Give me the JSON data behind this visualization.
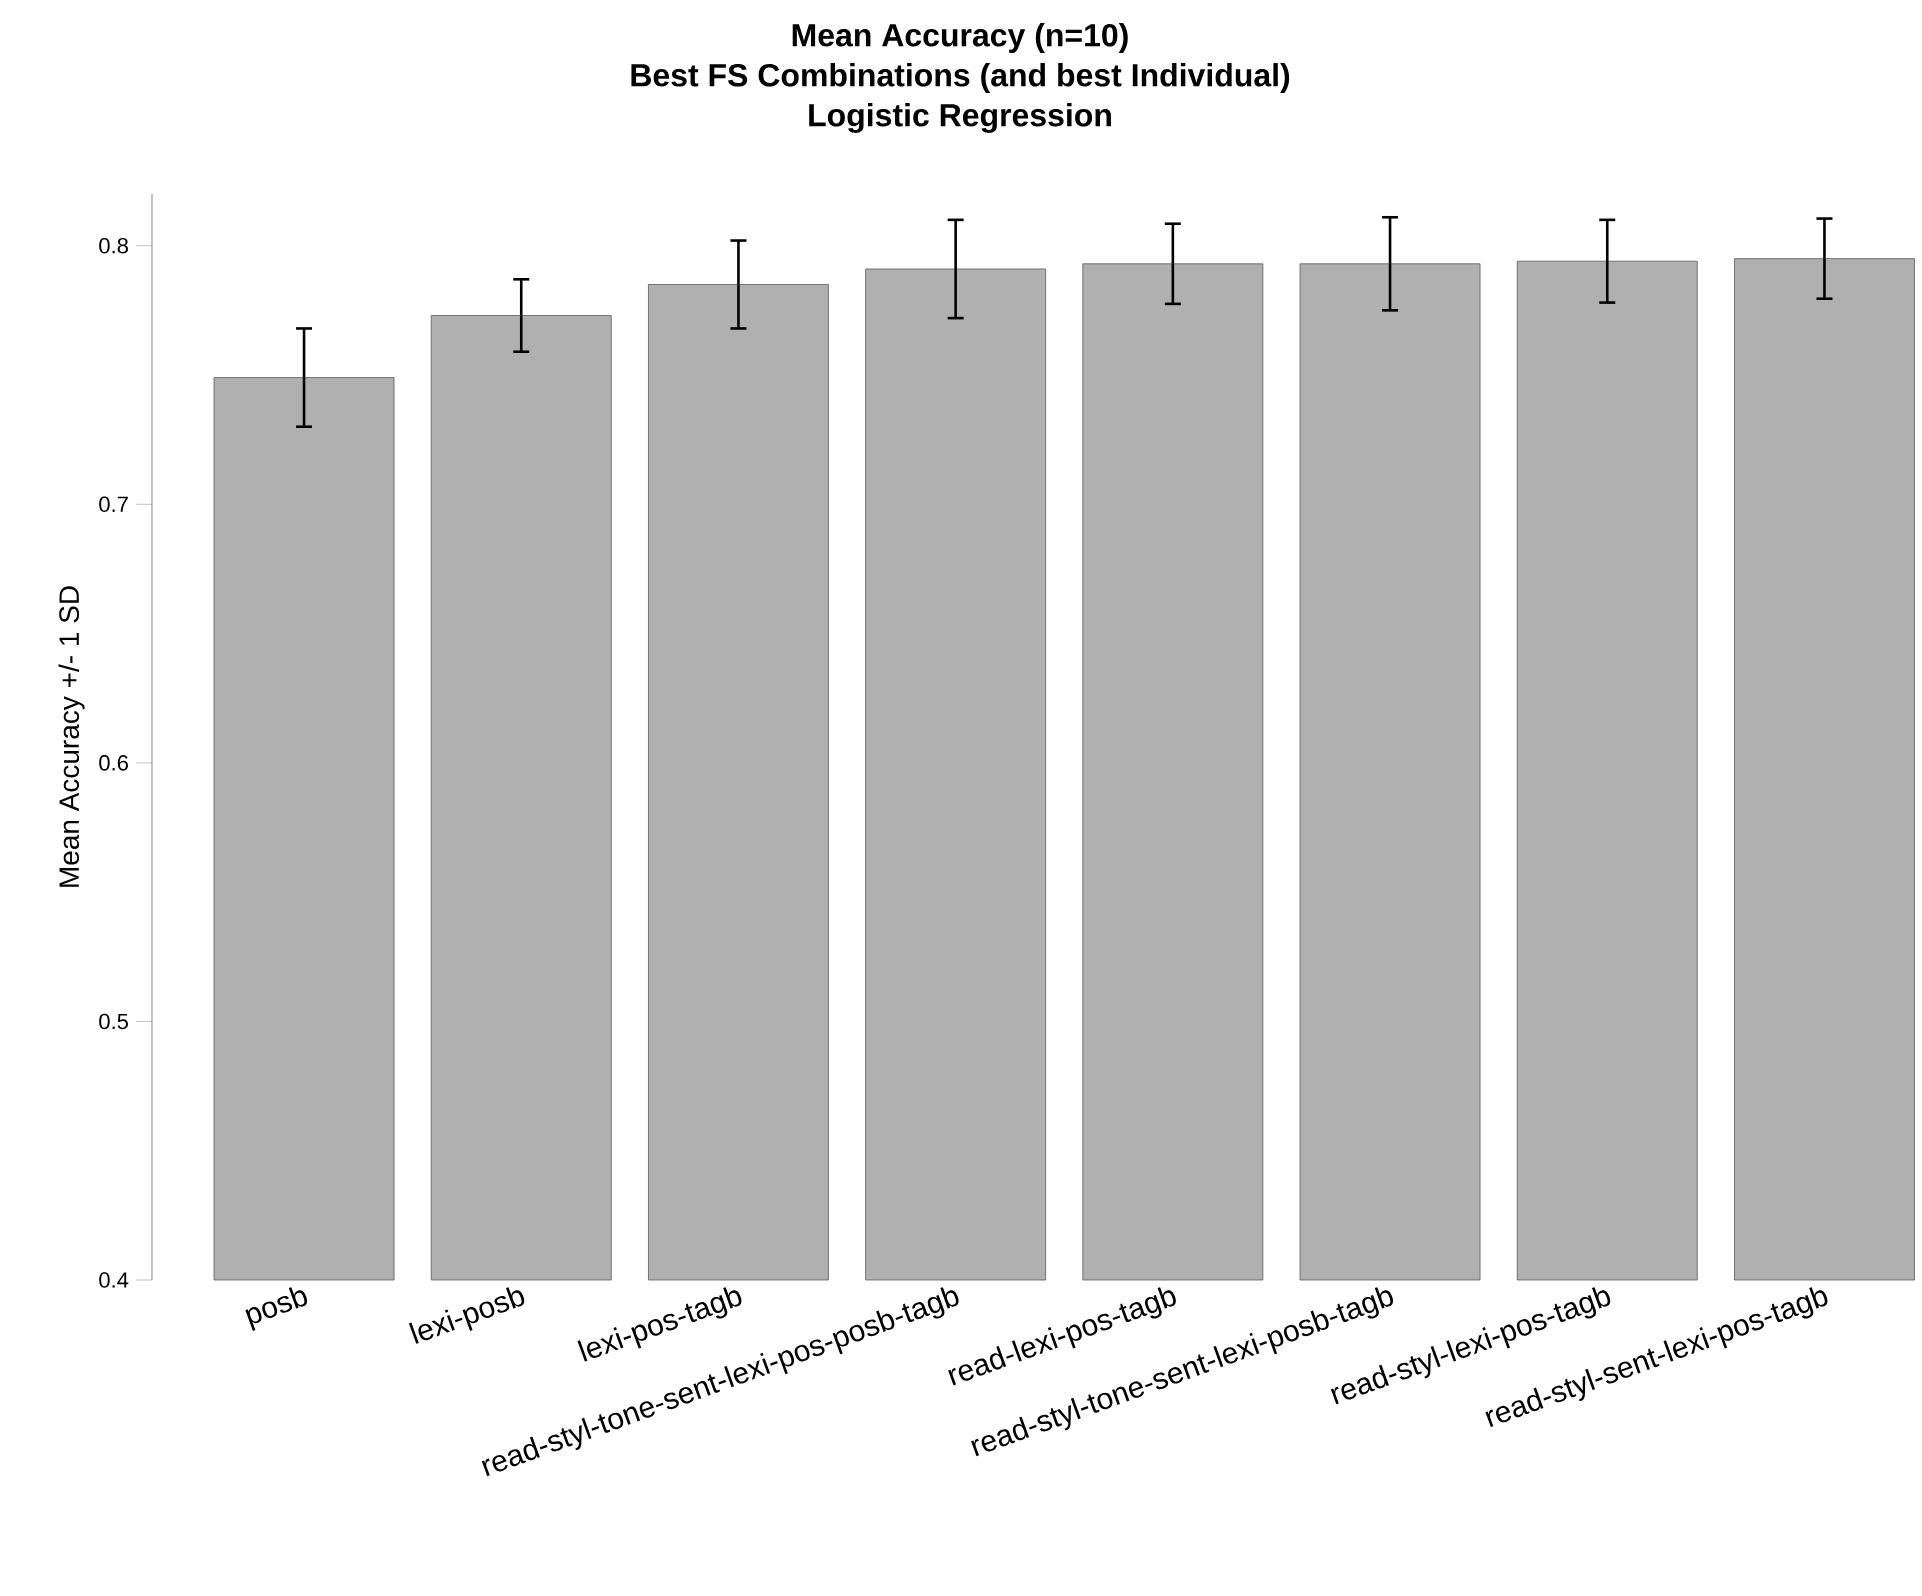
{
  "chart_data": {
    "type": "bar",
    "title": "Mean Accuracy (n=10)",
    "subtitle": "Best FS Combinations (and best Individual)",
    "annotations": [
      "Logistic Regression"
    ],
    "ylabel": "Mean Accuracy +/- 1 SD",
    "categories": [
      "posb",
      "lexi-posb",
      "lexi-pos-tagb",
      "read-styl-tone-sent-lexi-pos-posb-tagb",
      "read-lexi-pos-tagb",
      "read-styl-tone-sent-lexi-posb-tagb",
      "read-styl-lexi-pos-tagb",
      "read-styl-sent-lexi-pos-tagb"
    ],
    "values": [
      0.749,
      0.773,
      0.785,
      0.791,
      0.793,
      0.793,
      0.794,
      0.795
    ],
    "errors": [
      0.019,
      0.014,
      0.017,
      0.019,
      0.0155,
      0.018,
      0.016,
      0.0155
    ],
    "color": "#b0b0b0",
    "ylim": [
      0.4,
      0.82
    ],
    "yticks": [
      0.4,
      0.5,
      0.6,
      0.7,
      0.8
    ]
  }
}
